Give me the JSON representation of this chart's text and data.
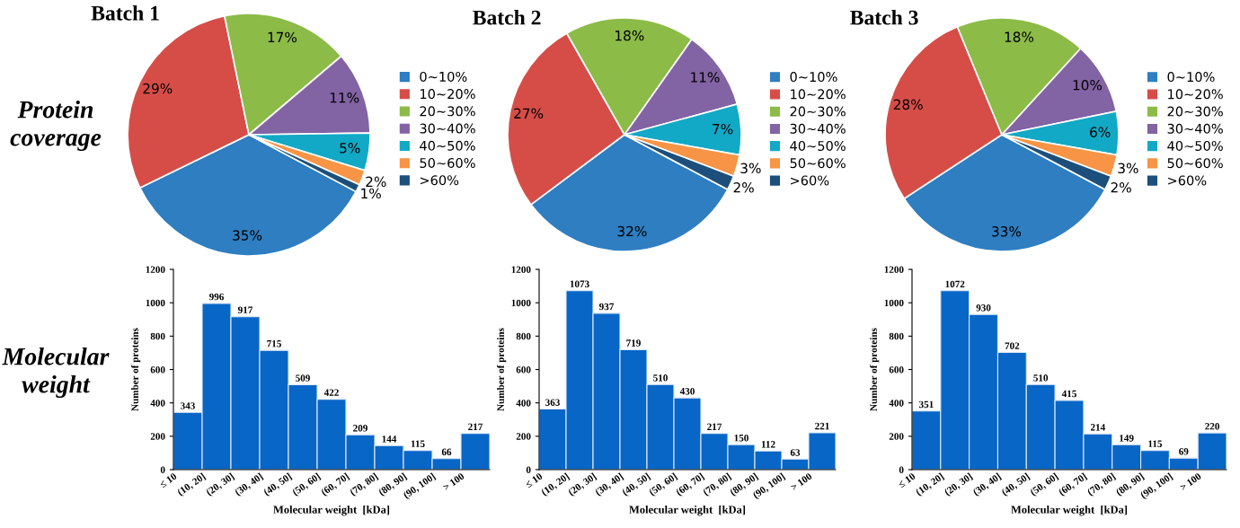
{
  "chart_data": [
    {
      "type": "pie",
      "title": "Batch 1",
      "annotations": [
        "Protein\ncoverage"
      ],
      "legend": "right",
      "categories": [
        "0~10%",
        "10~20%",
        "20~30%",
        "30~40%",
        "40~50%",
        "50~60%",
        ">60%"
      ],
      "values": [
        35,
        29,
        17,
        11,
        5,
        2,
        1
      ],
      "value_labels": [
        "35%",
        "29%",
        "17%",
        "11%",
        "5%",
        "2%",
        "1%"
      ],
      "colors": [
        "#2e7ec1",
        "#d64d48",
        "#8cbb48",
        "#8263a3",
        "#12a9c6",
        "#f79445",
        "#1d4f7c"
      ]
    },
    {
      "type": "pie",
      "title": "Batch 2",
      "legend": "right",
      "categories": [
        "0~10%",
        "10~20%",
        "20~30%",
        "30~40%",
        "40~50%",
        "50~60%",
        ">60%"
      ],
      "values": [
        32,
        27,
        18,
        11,
        7,
        3,
        2
      ],
      "value_labels": [
        "32%",
        "27%",
        "18%",
        "11%",
        "7%",
        "3%",
        "2%"
      ],
      "colors": [
        "#2e7ec1",
        "#d64d48",
        "#8cbb48",
        "#8263a3",
        "#12a9c6",
        "#f79445",
        "#1d4f7c"
      ]
    },
    {
      "type": "pie",
      "title": "Batch 3",
      "legend": "right",
      "categories": [
        "0~10%",
        "10~20%",
        "20~30%",
        "30~40%",
        "40~50%",
        "50~60%",
        ">60%"
      ],
      "values": [
        33,
        28,
        18,
        10,
        6,
        3,
        2
      ],
      "value_labels": [
        "33%",
        "28%",
        "18%",
        "10%",
        "6%",
        "3%",
        "2%"
      ],
      "colors": [
        "#2e7ec1",
        "#d64d48",
        "#8cbb48",
        "#8263a3",
        "#12a9c6",
        "#f79445",
        "#1d4f7c"
      ]
    },
    {
      "type": "bar",
      "annotations": [
        "Molecular\nweight"
      ],
      "xlabel": "Molecular weight  [kDa]",
      "ylabel": "Number of proteins",
      "categories": [
        "≤ 10",
        "(10, 20]",
        "(20, 30]",
        "(30, 40]",
        "(40, 50]",
        "(50, 60]",
        "(60, 70]",
        "(70, 80]",
        "(80, 90]",
        "(90, 100]",
        "> 100"
      ],
      "values": [
        343,
        996,
        917,
        715,
        509,
        422,
        209,
        144,
        115,
        66,
        217
      ],
      "color": "#0866c6",
      "data_labels": true,
      "ylim": [
        0,
        1200
      ],
      "yticks": [
        0,
        200,
        400,
        600,
        800,
        1000,
        1200
      ]
    },
    {
      "type": "bar",
      "xlabel": "Molecular weight  [kDa]",
      "ylabel": "Number of proteins",
      "categories": [
        "≤ 10",
        "(10, 20]",
        "(20, 30]",
        "(30, 40]",
        "(40, 50]",
        "(50, 60]",
        "(60, 70]",
        "(70, 80]",
        "(80, 90]",
        "(90, 100]",
        "> 100"
      ],
      "values": [
        363,
        1073,
        937,
        719,
        510,
        430,
        217,
        150,
        112,
        63,
        221
      ],
      "color": "#0866c6",
      "data_labels": true,
      "ylim": [
        0,
        1200
      ],
      "yticks": [
        0,
        200,
        400,
        600,
        800,
        1000,
        1200
      ]
    },
    {
      "type": "bar",
      "xlabel": "Molecular weight  [kDa]",
      "ylabel": "Number of proteins",
      "categories": [
        "≤ 10",
        "(10, 20]",
        "(20, 30]",
        "(30, 40]",
        "(40, 50]",
        "(50, 60]",
        "(60, 70]",
        "(70, 80]",
        "(80, 90]",
        "(90, 100]",
        "> 100"
      ],
      "values": [
        351,
        1072,
        930,
        702,
        510,
        415,
        214,
        149,
        115,
        69,
        220
      ],
      "color": "#0866c6",
      "data_labels": true,
      "ylim": [
        0,
        1200
      ],
      "yticks": [
        0,
        200,
        400,
        600,
        800,
        1000,
        1200
      ]
    }
  ]
}
